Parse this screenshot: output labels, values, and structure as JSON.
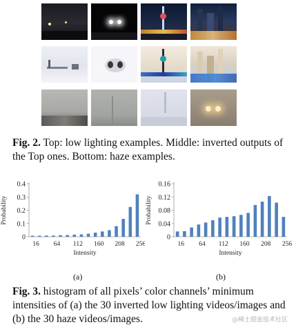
{
  "figure2": {
    "rows": [
      {
        "name": "low-lighting",
        "tiles": [
          "night-street-dark",
          "night-car-headlights",
          "night-city-tower",
          "night-city-skyline"
        ]
      },
      {
        "name": "inverted",
        "tiles": [
          "inverted-street",
          "inverted-car-headlights",
          "inverted-city-tower",
          "inverted-city-skyline"
        ]
      },
      {
        "name": "haze",
        "tiles": [
          "haze-city-street",
          "haze-foggy-street",
          "haze-foggy-tower",
          "haze-car-lights"
        ]
      }
    ],
    "caption_label": "Fig. 2.",
    "caption_text": " Top: low lighting examples. Middle: inverted outputs of the Top ones. Bottom: haze examples."
  },
  "chart_data": [
    {
      "type": "bar",
      "ylabel": "Probability",
      "xlabel": "Intensity",
      "ylim": [
        0,
        0.4
      ],
      "yticks": [
        0,
        0.1,
        0.2,
        0.3,
        0.4
      ],
      "ytick_labels": [
        "0",
        "0.1",
        "0.2",
        "0.3",
        "0.4"
      ],
      "xticks": [
        16,
        64,
        112,
        160,
        208,
        256
      ],
      "x": [
        8,
        24,
        40,
        56,
        72,
        88,
        104,
        120,
        136,
        152,
        168,
        184,
        200,
        216,
        232,
        248
      ],
      "values": [
        0.008,
        0.008,
        0.009,
        0.009,
        0.012,
        0.013,
        0.016,
        0.018,
        0.023,
        0.031,
        0.04,
        0.05,
        0.08,
        0.135,
        0.225,
        0.32
      ],
      "sublabel": "(a)",
      "color": "#4f81bd"
    },
    {
      "type": "bar",
      "ylabel": "Probability",
      "xlabel": "Intensity",
      "ylim": [
        0,
        0.16
      ],
      "yticks": [
        0,
        0.04,
        0.08,
        0.12,
        0.16
      ],
      "ytick_labels": [
        "0",
        "0.04",
        "0.08",
        "0.12",
        "0.16"
      ],
      "xticks": [
        16,
        64,
        112,
        160,
        208,
        256
      ],
      "x": [
        8,
        24,
        40,
        56,
        72,
        88,
        104,
        120,
        136,
        152,
        168,
        184,
        200,
        216,
        232,
        248
      ],
      "values": [
        0.016,
        0.017,
        0.028,
        0.037,
        0.043,
        0.05,
        0.058,
        0.06,
        0.062,
        0.066,
        0.072,
        0.096,
        0.106,
        0.123,
        0.103,
        0.06
      ],
      "sublabel": "(b)",
      "color": "#4f81bd"
    }
  ],
  "figure3": {
    "caption_label": "Fig. 3.",
    "caption_text": " histogram of all pixels’ color channels’ minimum intensities of (a) the 30 inverted low lighting videos/images and (b) the 30 haze videos/images."
  },
  "watermark": "@稀土掘金技术社区"
}
